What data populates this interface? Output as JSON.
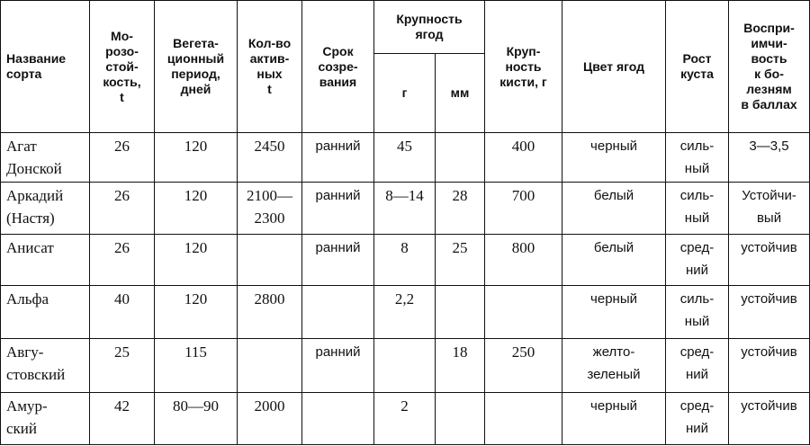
{
  "headers": {
    "name": "Название\nсорта",
    "frost": "Мо-\nрозо-\nстой-\nкость,\nt",
    "veg": "Вегета-\nционный\nпериод,\nдней",
    "active": "Кол-во\nактив-\nных\nt",
    "ripening": "Срок\nсозре-\nвания",
    "berry_size": "Крупность\nягод",
    "berry_g": "г",
    "berry_mm": "мм",
    "cluster": "Круп-\nность\nкисти, г",
    "color": "Цвет ягод",
    "growth": "Рост\nкуста",
    "disease": "Воспри-\nимчи-\nвость\nк бо-\nлезням\nв баллах"
  },
  "rows": [
    {
      "name": "Агат\nДонской",
      "frost": "26",
      "veg": "120",
      "active": "2450",
      "ripening": "ранний",
      "g": "45",
      "mm": "",
      "cluster": "400",
      "color": "черный",
      "growth": "силь-\nный",
      "disease": "3—3,5"
    },
    {
      "name": "Аркадий\n(Настя)",
      "frost": "26",
      "veg": "120",
      "active": "2100—\n2300",
      "ripening": "ранний",
      "g": "8—14",
      "mm": "28",
      "cluster": "700",
      "color": "белый",
      "growth": "силь-\nный",
      "disease": "Устойчи-\nвый"
    },
    {
      "name": "Анисат",
      "frost": "26",
      "veg": "120",
      "active": "",
      "ripening": "ранний",
      "g": "8",
      "mm": "25",
      "cluster": "800",
      "color": "белый",
      "growth": "сред-\nний",
      "disease": "устойчив"
    },
    {
      "name": "Альфа",
      "frost": "40",
      "veg": "120",
      "active": "2800",
      "ripening": "",
      "g": "2,2",
      "mm": "",
      "cluster": "",
      "color": "черный",
      "growth": "силь-\nный",
      "disease": "устойчив"
    },
    {
      "name": "Авгу-\nстовский",
      "frost": "25",
      "veg": "115",
      "active": "",
      "ripening": "ранний",
      "g": "",
      "mm": "18",
      "cluster": "250",
      "color": "желто-\nзеленый",
      "growth": "сред-\nний",
      "disease": "устойчив"
    },
    {
      "name": "Амур-\nский",
      "frost": "42",
      "veg": "80—90",
      "active": "2000",
      "ripening": "",
      "g": "2",
      "mm": "",
      "cluster": "",
      "color": "черный",
      "growth": "сред-\nний",
      "disease": "устойчив"
    }
  ]
}
